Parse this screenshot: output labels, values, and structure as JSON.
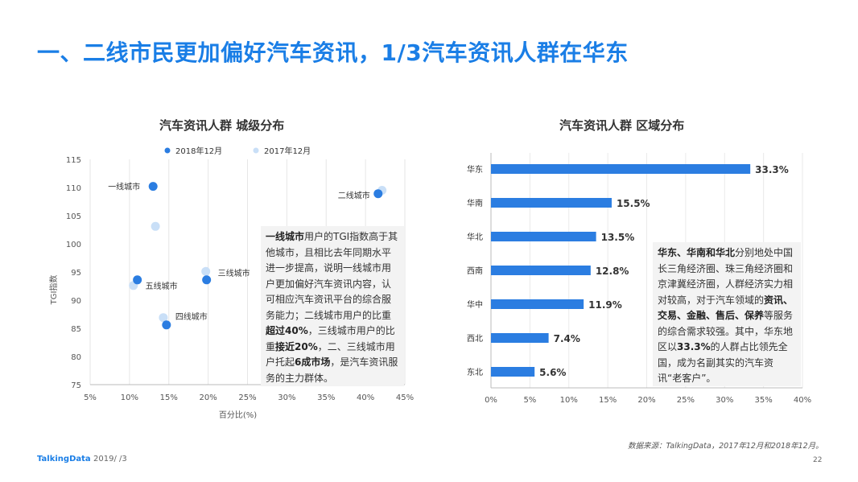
{
  "header": {
    "title": "一、二线市民更加偏好汽车资讯，1/3汽车资讯人群在华东"
  },
  "colors": {
    "accent": "#1a7ee6",
    "series_2018": "#2b7de1",
    "series_2017": "#c9dff7",
    "bar": "#2b7de1",
    "box_bg": "#f3f3f3"
  },
  "chart_data": [
    {
      "type": "scatter",
      "title": "汽车资讯人群  城级分布",
      "xlabel": "百分比(%)",
      "ylabel": "TGI指数",
      "xlim": [
        5,
        45
      ],
      "ylim": [
        75,
        115
      ],
      "xticks": [
        "5%",
        "10%",
        "15%",
        "20%",
        "25%",
        "30%",
        "35%",
        "40%",
        "45%"
      ],
      "yticks": [
        "75",
        "80",
        "85",
        "90",
        "95",
        "100",
        "105",
        "110",
        "115"
      ],
      "legend_position": "top",
      "grid": "vertical",
      "series": [
        {
          "name": "2018年12月",
          "points": [
            {
              "label": "一线城市",
              "x": 13.0,
              "y": 110.2
            },
            {
              "label": "二线城市",
              "x": 41.6,
              "y": 108.9
            },
            {
              "label": "三线城市",
              "x": 19.8,
              "y": 93.6
            },
            {
              "label": "四线城市",
              "x": 14.7,
              "y": 85.6
            },
            {
              "label": "五线城市",
              "x": 11.0,
              "y": 93.6
            }
          ]
        },
        {
          "name": "2017年12月",
          "points": [
            {
              "label": "一线城市",
              "x": 13.3,
              "y": 103.1
            },
            {
              "label": "二线城市",
              "x": 42.1,
              "y": 109.5
            },
            {
              "label": "三线城市",
              "x": 19.7,
              "y": 95.1
            },
            {
              "label": "四线城市",
              "x": 14.3,
              "y": 86.9
            },
            {
              "label": "五线城市",
              "x": 10.5,
              "y": 92.6
            }
          ]
        }
      ]
    },
    {
      "type": "bar",
      "orientation": "horizontal",
      "title": "汽车资讯人群  区域分布",
      "categories": [
        "华东",
        "华南",
        "华北",
        "西南",
        "华中",
        "西北",
        "东北"
      ],
      "values": [
        33.3,
        15.5,
        13.5,
        12.8,
        11.9,
        7.4,
        5.6
      ],
      "value_labels": [
        "33.3%",
        "15.5%",
        "13.5%",
        "12.8%",
        "11.9%",
        "7.4%",
        "5.6%"
      ],
      "xlim": [
        0,
        40
      ],
      "xticks": [
        "0%",
        "5%",
        "10%",
        "15%",
        "20%",
        "25%",
        "30%",
        "35%",
        "40%"
      ]
    }
  ],
  "left_note": [
    {
      "t": "一线城市",
      "b": true
    },
    {
      "t": "用户的TGI指数高于其他城市，且相比去年同期水平进一步提高，说明一线城市用户更加偏好汽车资讯内容，认可相应汽车资讯平台的综合服务能力；二线城市用户的比重",
      "b": false
    },
    {
      "t": "超过40%",
      "b": true
    },
    {
      "t": "，三线城市用户的比重",
      "b": false
    },
    {
      "t": "接近20%",
      "b": true
    },
    {
      "t": "，二、三线城市用户托起",
      "b": false
    },
    {
      "t": "6成市场",
      "b": true
    },
    {
      "t": "，是汽车资讯服务的主力群体。",
      "b": false
    }
  ],
  "right_note": [
    {
      "t": "华东、华南和华北",
      "b": true
    },
    {
      "t": "分别地处中国长三角经济圈、珠三角经济圈和京津冀经济圈，人群经济实力相对较高，对于汽车领域的",
      "b": false
    },
    {
      "t": "资讯、交易、金融、售后、保养",
      "b": true
    },
    {
      "t": "等服务的综合需求较强。其中，华东地区以",
      "b": false
    },
    {
      "t": "33.3%",
      "b": true
    },
    {
      "t": "的人群占比领先全国，成为名副其实的汽车资讯“老客户”。",
      "b": false
    }
  ],
  "footer": {
    "logo": "TalkingData",
    "date": "2019/ /3",
    "source": "数据来源：TalkingData，2017年12月和2018年12月。",
    "page": "22"
  }
}
